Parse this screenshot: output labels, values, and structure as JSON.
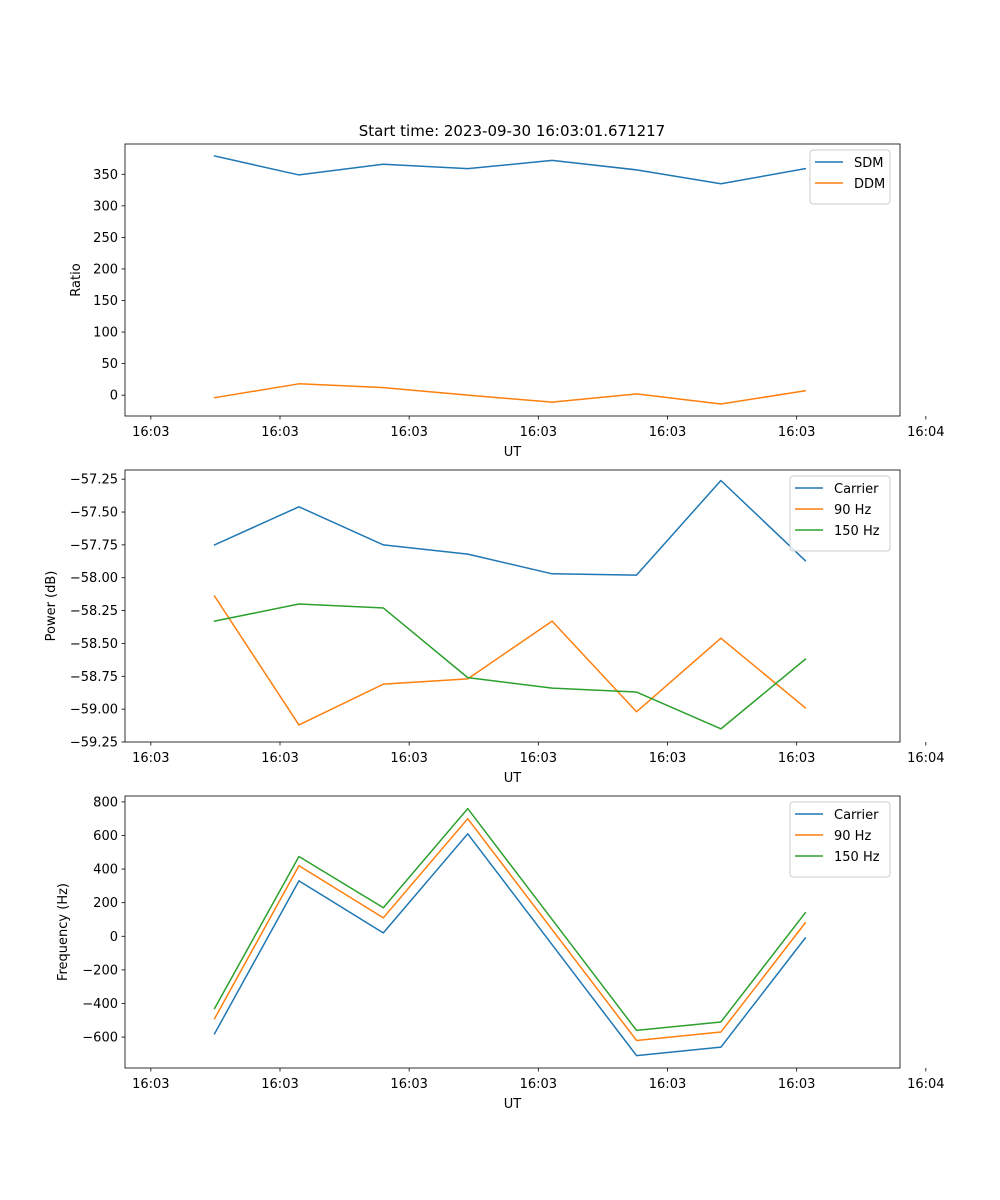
{
  "figure_title": "Start time: 2023-09-30 16:03:01.671217",
  "colors": {
    "blue": "#1f77b4",
    "orange": "#ff7f0e",
    "green": "#2ca02c"
  },
  "chart_data": [
    {
      "type": "line",
      "title": "Start time: 2023-09-30 16:03:01.671217",
      "xlabel": "UT",
      "ylabel": "Ratio",
      "xlim": [
        -0.3,
        8.7
      ],
      "x_ticks": [
        0,
        1.5,
        3,
        4.5,
        6,
        7.5,
        9
      ],
      "x_tick_labels": [
        "16:03",
        "16:03",
        "16:03",
        "16:03",
        "16:03",
        "16:03",
        "16:04"
      ],
      "ylim": [
        -33,
        398
      ],
      "y_ticks": [
        0,
        50,
        100,
        150,
        200,
        250,
        300,
        350
      ],
      "y_tick_labels": [
        "0",
        "50",
        "100",
        "150",
        "200",
        "250",
        "300",
        "350"
      ],
      "x": [
        0.74,
        1.72,
        2.7,
        3.68,
        4.66,
        5.64,
        6.62,
        7.6
      ],
      "series": [
        {
          "name": "SDM",
          "color": "#1f77b4",
          "values": [
            379,
            349,
            366,
            359,
            372,
            357,
            335,
            359
          ]
        },
        {
          "name": "DDM",
          "color": "#ff7f0e",
          "values": [
            -4,
            18,
            12,
            0,
            -11,
            2,
            -14,
            7
          ]
        }
      ],
      "legend": "top-right"
    },
    {
      "type": "line",
      "title": "",
      "xlabel": "UT",
      "ylabel": "Power (dB)",
      "xlim": [
        -0.3,
        8.7
      ],
      "x_ticks": [
        0,
        1.5,
        3,
        4.5,
        6,
        7.5,
        9
      ],
      "x_tick_labels": [
        "16:03",
        "16:03",
        "16:03",
        "16:03",
        "16:03",
        "16:03",
        "16:04"
      ],
      "ylim": [
        -59.25,
        -57.18
      ],
      "y_ticks": [
        -59.25,
        -59.0,
        -58.75,
        -58.5,
        -58.25,
        -58.0,
        -57.75,
        -57.5,
        -57.25
      ],
      "y_tick_labels": [
        "−59.25",
        "−59.00",
        "−58.75",
        "−58.50",
        "−58.25",
        "−58.00",
        "−57.75",
        "−57.50",
        "−57.25"
      ],
      "x": [
        0.74,
        1.72,
        2.7,
        3.68,
        4.66,
        5.64,
        6.62,
        7.6
      ],
      "series": [
        {
          "name": "Carrier",
          "color": "#1f77b4",
          "values": [
            -57.75,
            -57.46,
            -57.75,
            -57.82,
            -57.97,
            -57.98,
            -57.26,
            -57.87
          ]
        },
        {
          "name": "90 Hz",
          "color": "#ff7f0e",
          "values": [
            -58.14,
            -59.12,
            -58.81,
            -58.77,
            -58.33,
            -59.02,
            -58.46,
            -58.99
          ]
        },
        {
          "name": "150 Hz",
          "color": "#2ca02c",
          "values": [
            -58.33,
            -58.2,
            -58.23,
            -58.76,
            -58.84,
            -58.87,
            -59.15,
            -58.62
          ]
        }
      ],
      "legend": "top-right"
    },
    {
      "type": "line",
      "title": "",
      "xlabel": "UT",
      "ylabel": "Frequency (Hz)",
      "xlim": [
        -0.3,
        8.7
      ],
      "x_ticks": [
        0,
        1.5,
        3,
        4.5,
        6,
        7.5,
        9
      ],
      "x_tick_labels": [
        "16:03",
        "16:03",
        "16:03",
        "16:03",
        "16:03",
        "16:03",
        "16:04"
      ],
      "ylim": [
        -784,
        835
      ],
      "y_ticks": [
        -600,
        -400,
        -200,
        0,
        200,
        400,
        600,
        800
      ],
      "y_tick_labels": [
        "−600",
        "−400",
        "−200",
        "0",
        "200",
        "400",
        "600",
        "800"
      ],
      "x": [
        0.74,
        1.72,
        2.7,
        3.68,
        4.66,
        5.64,
        6.62,
        7.6
      ],
      "series": [
        {
          "name": "Carrier",
          "color": "#1f77b4",
          "values": [
            -580,
            330,
            20,
            610,
            -50,
            -710,
            -660,
            -10
          ]
        },
        {
          "name": "90 Hz",
          "color": "#ff7f0e",
          "values": [
            -490,
            420,
            110,
            700,
            40,
            -620,
            -570,
            80
          ]
        },
        {
          "name": "150 Hz",
          "color": "#2ca02c",
          "values": [
            -430,
            475,
            170,
            760,
            100,
            -560,
            -510,
            140
          ]
        }
      ],
      "legend": "top-right"
    }
  ]
}
